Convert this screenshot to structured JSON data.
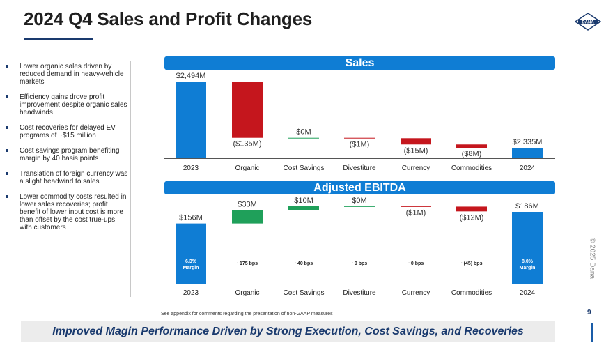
{
  "title": "2024 Q4 Sales and Profit Changes",
  "logo_text": "DANA",
  "bullets": [
    "Lower organic sales driven by reduced demand in heavy-vehicle markets",
    "Efficiency gains drove profit improvement despite organic sales headwinds",
    "Cost recoveries for delayed EV programs of ~$15 million",
    "Cost savings program benefiting margin by 40 basis points",
    "Translation of foreign currency was a slight headwind to sales",
    "Lower commodity costs resulted in lower sales recoveries; profit benefit of lower input cost is more than offset by the cost true-ups with customers"
  ],
  "sales_header": "Sales",
  "ebitda_header": "Adjusted EBITDA",
  "colors": {
    "total": "#0f7dd4",
    "positive": "#1fa05a",
    "negative": "#c5161d",
    "header": "#0f7dd4",
    "navy": "#1a3a6e"
  },
  "chart_data": [
    {
      "type": "bar",
      "subtype": "waterfall",
      "title": "Sales",
      "unit": "$M",
      "categories": [
        "2023",
        "Organic",
        "Cost Savings",
        "Divestiture",
        "Currency",
        "Commodities",
        "2024"
      ],
      "values": [
        2494,
        -135,
        0,
        -1,
        -15,
        -8,
        2335
      ],
      "kinds": [
        "total",
        "delta",
        "delta",
        "delta",
        "delta",
        "delta",
        "total"
      ],
      "labels": [
        "$2,494M",
        "($135M)",
        "$0M",
        "($1M)",
        "($15M)",
        "($8M)",
        "$2,335M"
      ]
    },
    {
      "type": "bar",
      "subtype": "waterfall",
      "title": "Adjusted EBITDA",
      "unit": "$M",
      "categories": [
        "2023",
        "Organic",
        "Cost Savings",
        "Divestiture",
        "Currency",
        "Commodities",
        "2024"
      ],
      "values": [
        156,
        33,
        10,
        0,
        -1,
        -12,
        186
      ],
      "kinds": [
        "total",
        "delta",
        "delta",
        "delta",
        "delta",
        "delta",
        "total"
      ],
      "labels": [
        "$156M",
        "$33M",
        "$10M",
        "$0M",
        "($1M)",
        "($12M)",
        "$186M"
      ],
      "margin_notes": [
        "6.3%\nMargin",
        "~175 bps",
        "~40 bps",
        "~0 bps",
        "~0 bps",
        "~(45) bps",
        "8.0%\nMargin"
      ]
    }
  ],
  "footnote": "See appendix for comments regarding the presentation of non-GAAP measures",
  "bottom_banner": "Improved Magin Performance Driven by Strong Execution, Cost Savings, and Recoveries",
  "copyright": "© 2025 Dana",
  "page_number": "9"
}
